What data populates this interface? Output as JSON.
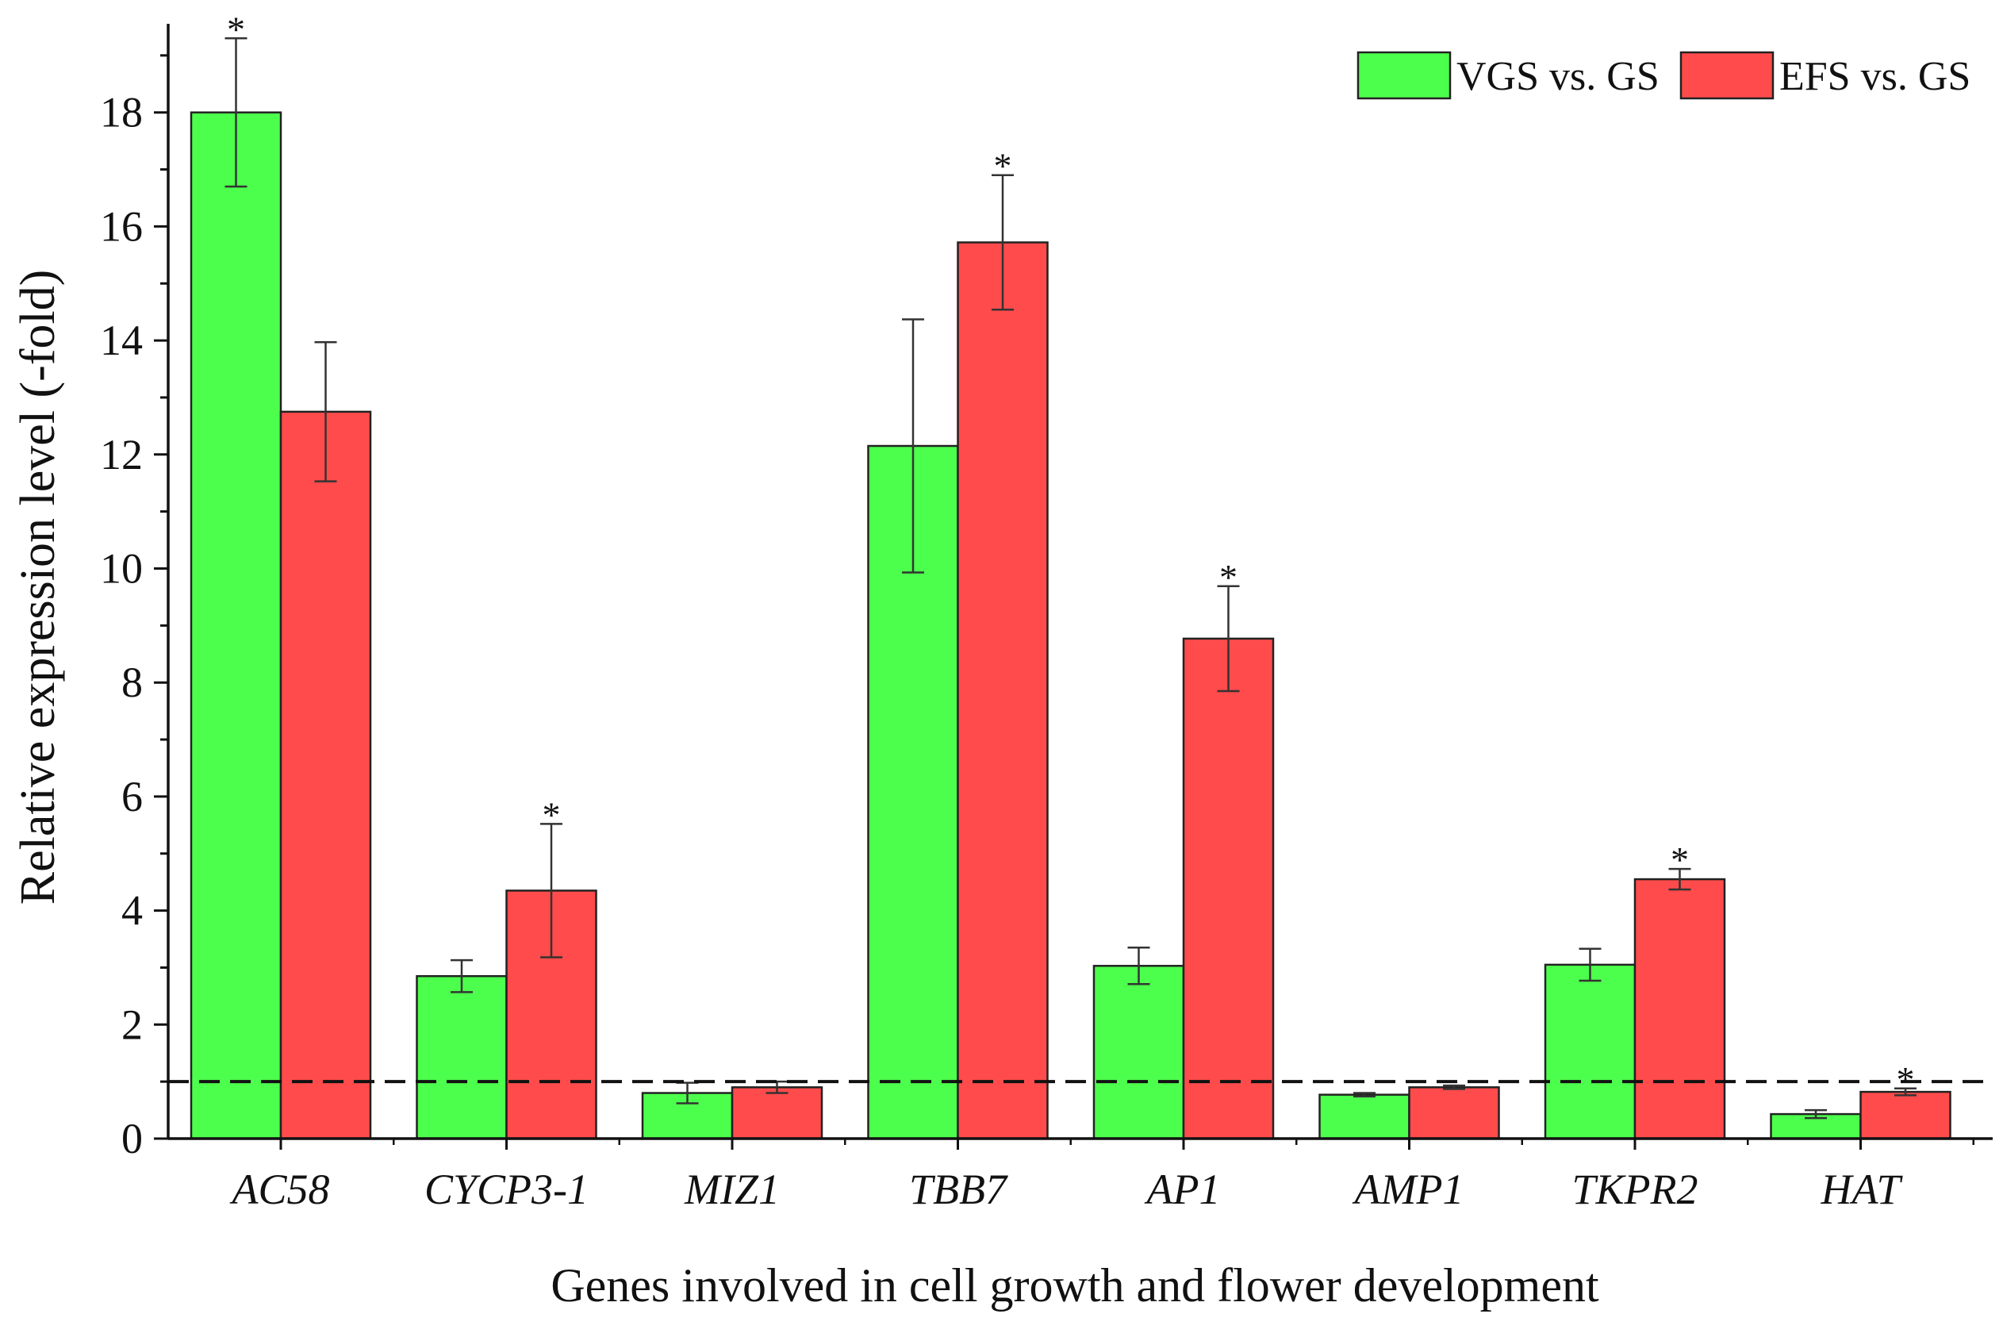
{
  "chart_data": {
    "type": "bar",
    "xlabel": "Genes involved in cell growth and flower development",
    "ylabel": "Relative expression level (-fold)",
    "ylim": [
      0,
      19.5
    ],
    "yticks": [
      0,
      2,
      4,
      6,
      8,
      10,
      12,
      14,
      16,
      18
    ],
    "grid": false,
    "legend_position": "top-right",
    "reference_line": {
      "y": 1,
      "style": "dashed"
    },
    "categories": [
      "AC58",
      "CYCP3-1",
      "MIZ1",
      "TBB7",
      "AP1",
      "AMP1",
      "TKPR2",
      "HAT"
    ],
    "series": [
      {
        "name": "VGS vs. GS",
        "color": "#4dff4d",
        "values": [
          18.0,
          2.85,
          0.8,
          12.15,
          3.03,
          0.77,
          3.05,
          0.43
        ],
        "errors": [
          1.3,
          0.28,
          0.18,
          2.22,
          0.32,
          0.03,
          0.28,
          0.07
        ],
        "significant": [
          true,
          false,
          false,
          false,
          false,
          false,
          false,
          false
        ]
      },
      {
        "name": "EFS vs. GS",
        "color": "#ff4b4b",
        "values": [
          12.75,
          4.35,
          0.9,
          15.72,
          8.77,
          0.9,
          4.55,
          0.82
        ],
        "errors": [
          1.22,
          1.17,
          0.1,
          1.18,
          0.92,
          0.03,
          0.18,
          0.06
        ],
        "significant": [
          false,
          true,
          false,
          true,
          true,
          false,
          true,
          true
        ]
      }
    ],
    "significance_marker": "*"
  }
}
